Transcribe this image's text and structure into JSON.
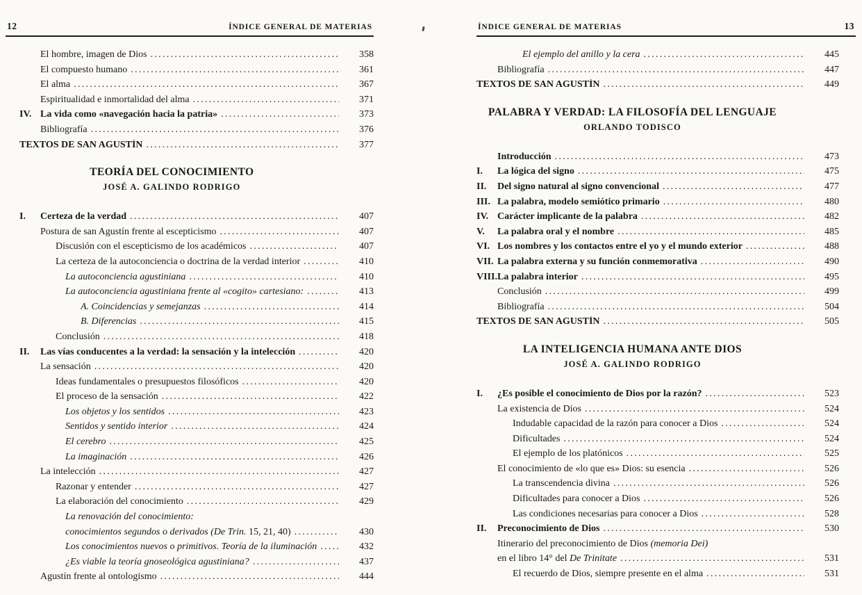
{
  "colors": {
    "ink": "#191919",
    "paper": "#fbfaf6"
  },
  "left_page": {
    "page_number": "12",
    "running_header": "ÍNDICE GENERAL DE MATERIAS",
    "blocks": [
      {
        "type": "entries",
        "items": [
          {
            "indent": 1,
            "label": "El hombre, imagen de Dios",
            "page": "358"
          },
          {
            "indent": 1,
            "label": "El compuesto humano",
            "page": "361"
          },
          {
            "indent": 1,
            "label": "El alma",
            "page": "367"
          },
          {
            "indent": 1,
            "label": "Espiritualidad e inmortalidad del alma",
            "page": "371"
          },
          {
            "indent": 0,
            "num": "IV.",
            "bold": true,
            "label": "La vida como «navegación hacia la patria»",
            "page": "373"
          },
          {
            "indent": 1,
            "label": "Bibliografía",
            "page": "376"
          },
          {
            "indent": 0,
            "bold": true,
            "label": "TEXTOS DE SAN AGUSTÍN",
            "page": "377"
          }
        ]
      },
      {
        "type": "section",
        "title": "TEORÍA DEL CONOCIMIENTO",
        "author": "JOSÉ A. GALINDO RODRIGO"
      },
      {
        "type": "entries",
        "items": [
          {
            "indent": 0,
            "num": "I.",
            "bold": true,
            "label": "Certeza de la verdad",
            "page": "407"
          },
          {
            "indent": 1,
            "label": "Postura de san Agustín frente al escepticismo",
            "page": "407"
          },
          {
            "indent": 2,
            "label": "Discusión con el escepticismo de los académicos",
            "page": "407"
          },
          {
            "indent": 2,
            "label": "La certeza de la autoconciencia o doctrina de la verdad interior",
            "page": "410"
          },
          {
            "indent": 3,
            "label": "*La autoconciencia agustiniana*",
            "page": "410"
          },
          {
            "indent": 3,
            "label": "*La autoconciencia agustiniana frente al «cogito» cartesiano:*",
            "page": "413"
          },
          {
            "indent": 4,
            "label": "*A. Coincidencias y semejanzas*",
            "page": "414"
          },
          {
            "indent": 4,
            "label": "*B. Diferencias*",
            "page": "415"
          },
          {
            "indent": 2,
            "label": "Conclusión",
            "page": "418"
          },
          {
            "indent": 0,
            "num": "II.",
            "bold": true,
            "label": "Las vías conducentes a la verdad: la sensación y la intelección",
            "page": "420"
          },
          {
            "indent": 1,
            "label": "La sensación",
            "page": "420"
          },
          {
            "indent": 2,
            "label": "Ideas fundamentales o presupuestos filosóficos",
            "page": "420"
          },
          {
            "indent": 2,
            "label": "El proceso de la sensación",
            "page": "422"
          },
          {
            "indent": 3,
            "label": "*Los objetos y los sentidos*",
            "page": "423"
          },
          {
            "indent": 3,
            "label": "*Sentidos y sentido interior*",
            "page": "424"
          },
          {
            "indent": 3,
            "label": "*El cerebro*",
            "page": "425"
          },
          {
            "indent": 3,
            "label": "*La imaginación*",
            "page": "426"
          },
          {
            "indent": 1,
            "label": "La intelección",
            "page": "427"
          },
          {
            "indent": 2,
            "label": "Razonar y entender",
            "page": "427"
          },
          {
            "indent": 2,
            "label": "La elaboración del conocimiento",
            "page": "429"
          },
          {
            "indent": 3,
            "label": "*La renovación del conocimiento:*"
          },
          {
            "indent": 3,
            "label": "*conocimientos segundos o derivados (De Trin.* 15, 21, 40)",
            "page": "430"
          },
          {
            "indent": 3,
            "label": "*Los conocimientos nuevos o primitivos. Teoría de la iluminación*",
            "page": "432"
          },
          {
            "indent": 3,
            "label": "*¿Es viable la teoría gnoseológica agustiniana?*",
            "page": "437"
          },
          {
            "indent": 1,
            "label": "Agustín frente al ontologismo",
            "page": "444"
          }
        ]
      }
    ]
  },
  "right_page": {
    "page_number": "13",
    "running_header": "ÍNDICE GENERAL DE MATERIAS",
    "blocks": [
      {
        "type": "entries",
        "items": [
          {
            "indent": 3,
            "label": "*El ejemplo del anillo y la cera*",
            "page": "445"
          },
          {
            "indent": 1,
            "label": "Bibliografía",
            "page": "447"
          },
          {
            "indent": 0,
            "bold": true,
            "label": "TEXTOS DE SAN AGUSTÍN",
            "page": "449"
          }
        ]
      },
      {
        "type": "section",
        "title": "PALABRA Y VERDAD: LA FILOSOFÍA DEL LENGUAJE",
        "author": "ORLANDO TODISCO"
      },
      {
        "type": "entries",
        "items": [
          {
            "indent": 0,
            "num": "",
            "bold": true,
            "label": "Introducción",
            "page": "473"
          },
          {
            "indent": 0,
            "num": "I.",
            "bold": true,
            "label": "La lógica del signo",
            "page": "475"
          },
          {
            "indent": 0,
            "num": "II.",
            "bold": true,
            "label": "Del signo natural al signo convencional",
            "page": "477"
          },
          {
            "indent": 0,
            "num": "III.",
            "bold": true,
            "label": "La palabra, modelo semiótico primario",
            "page": "480"
          },
          {
            "indent": 0,
            "num": "IV.",
            "bold": true,
            "label": "Carácter implicante de la palabra",
            "page": "482"
          },
          {
            "indent": 0,
            "num": "V.",
            "bold": true,
            "label": "La palabra oral y el nombre",
            "page": "485"
          },
          {
            "indent": 0,
            "num": "VI.",
            "bold": true,
            "label": "Los nombres y los contactos entre el yo y el mundo exterior",
            "page": "488"
          },
          {
            "indent": 0,
            "num": "VII.",
            "bold": true,
            "label": "La palabra externa y su función conmemorativa",
            "page": "490"
          },
          {
            "indent": 0,
            "num": "VIII.",
            "bold": true,
            "label": "La palabra interior",
            "page": "495"
          },
          {
            "indent": 1,
            "label": "Conclusión",
            "page": "499"
          },
          {
            "indent": 1,
            "label": "Bibliografía",
            "page": "504"
          },
          {
            "indent": 0,
            "bold": true,
            "label": "TEXTOS DE SAN AGUSTÍN",
            "page": "505"
          }
        ]
      },
      {
        "type": "section",
        "title": "LA INTELIGENCIA HUMANA ANTE DIOS",
        "author": "JOSÉ A. GALINDO RODRIGO"
      },
      {
        "type": "entries",
        "items": [
          {
            "indent": 0,
            "num": "I.",
            "bold": true,
            "label": "¿Es posible el conocimiento de Dios por la razón?",
            "page": "523"
          },
          {
            "indent": 1,
            "label": "La existencia de Dios",
            "page": "524"
          },
          {
            "indent": 2,
            "label": "Indudable capacidad de la razón para conocer a Dios",
            "page": "524"
          },
          {
            "indent": 2,
            "label": "Dificultades",
            "page": "524"
          },
          {
            "indent": 2,
            "label": "El ejemplo de los platónicos",
            "page": "525"
          },
          {
            "indent": 1,
            "label": "El conocimiento de «lo que es»  Dios: su esencia",
            "page": "526"
          },
          {
            "indent": 2,
            "label": "La transcendencia divina",
            "page": "526"
          },
          {
            "indent": 2,
            "label": "Dificultades para conocer a Dios",
            "page": "526"
          },
          {
            "indent": 2,
            "label": "Las condiciones necesarias para conocer a Dios",
            "page": "528"
          },
          {
            "indent": 0,
            "num": "II.",
            "bold": true,
            "label": "Preconocimiento de Dios",
            "page": "530"
          },
          {
            "indent": 1,
            "label": "Itinerario del preconocimiento de Dios *(memoria Dei)*"
          },
          {
            "indent": 1,
            "label": "en el libro 14° del *De Trinitate*",
            "page": "531"
          },
          {
            "indent": 2,
            "label": "El recuerdo de Dios, siempre presente en el alma",
            "page": "531"
          }
        ]
      }
    ]
  }
}
